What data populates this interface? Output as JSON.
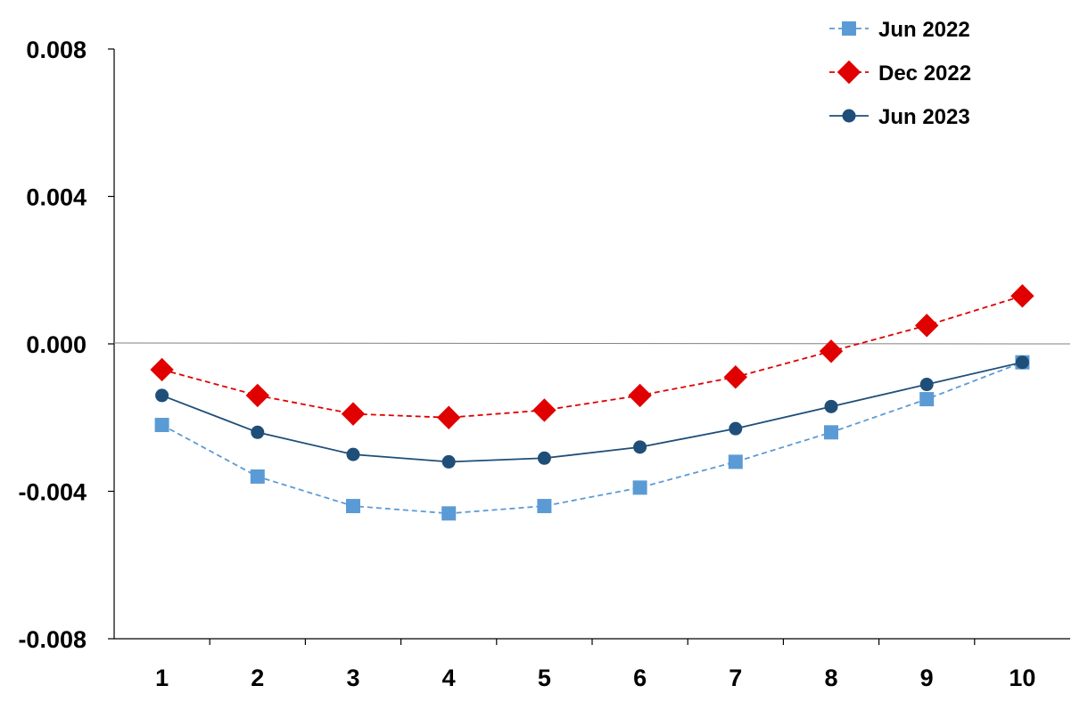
{
  "chart_data": {
    "type": "line",
    "title": "",
    "xlabel": "",
    "ylabel": "",
    "categories": [
      "1",
      "2",
      "3",
      "4",
      "5",
      "6",
      "7",
      "8",
      "9",
      "10"
    ],
    "ylim": [
      -0.008,
      0.008
    ],
    "yticks": [
      "0.008",
      "0.004",
      "0.000",
      "-0.004",
      "-0.008"
    ],
    "ytick_values": [
      0.008,
      0.004,
      0.0,
      -0.004,
      -0.008
    ],
    "legend_position": "top-right",
    "grid": false,
    "series": [
      {
        "name": "Jun 2022",
        "color": "#5b9bd5",
        "marker": "square",
        "line_style": "dashed",
        "values": [
          -0.0022,
          -0.0036,
          -0.0044,
          -0.0046,
          -0.0044,
          -0.0039,
          -0.0032,
          -0.0024,
          -0.0015,
          -0.0005
        ]
      },
      {
        "name": "Dec 2022",
        "color": "#e00000",
        "marker": "diamond",
        "line_style": "dashed",
        "values": [
          -0.0007,
          -0.0014,
          -0.0019,
          -0.002,
          -0.0018,
          -0.0014,
          -0.0009,
          -0.0002,
          0.0005,
          0.0013
        ]
      },
      {
        "name": "Jun 2023",
        "color": "#1f4e79",
        "marker": "circle",
        "line_style": "solid",
        "values": [
          -0.0014,
          -0.0024,
          -0.003,
          -0.0032,
          -0.0031,
          -0.0028,
          -0.0023,
          -0.0017,
          -0.0011,
          -0.0005
        ]
      }
    ]
  }
}
